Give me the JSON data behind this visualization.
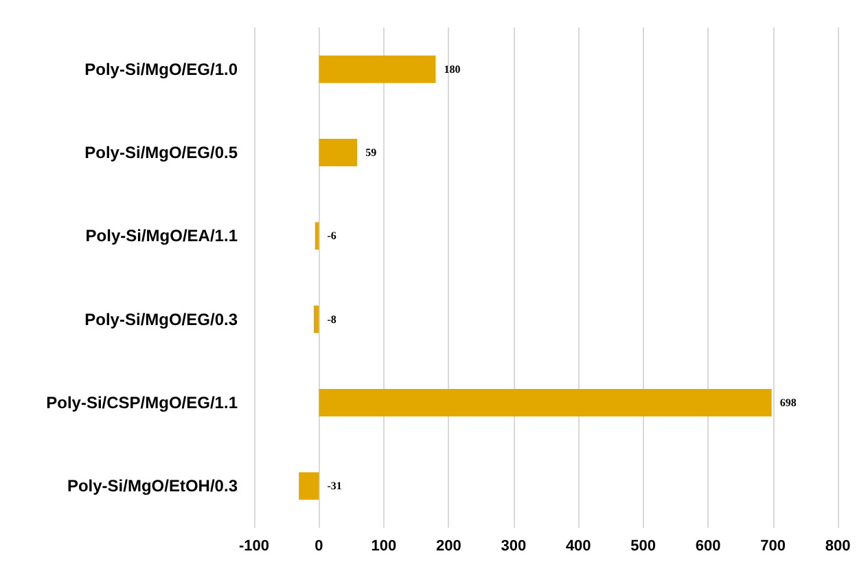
{
  "chart_data": {
    "type": "bar",
    "orientation": "horizontal",
    "categories": [
      "Poly-Si/MgO/EG/1.0",
      "Poly-Si/MgO/EG/0.5",
      "Poly-Si/MgO/EA/1.1",
      "Poly-Si/MgO/EG/0.3",
      "Poly-Si/CSP/MgO/EG/1.1",
      "Poly-Si/MgO/EtOH/0.3"
    ],
    "values": [
      180,
      59,
      -6,
      -8,
      698,
      -31
    ],
    "color": "#e3a800",
    "xlim": [
      -100,
      800
    ],
    "xticks": [
      -100,
      0,
      100,
      200,
      300,
      400,
      500,
      600,
      700,
      800
    ],
    "grid": "x",
    "data_labels": true
  }
}
